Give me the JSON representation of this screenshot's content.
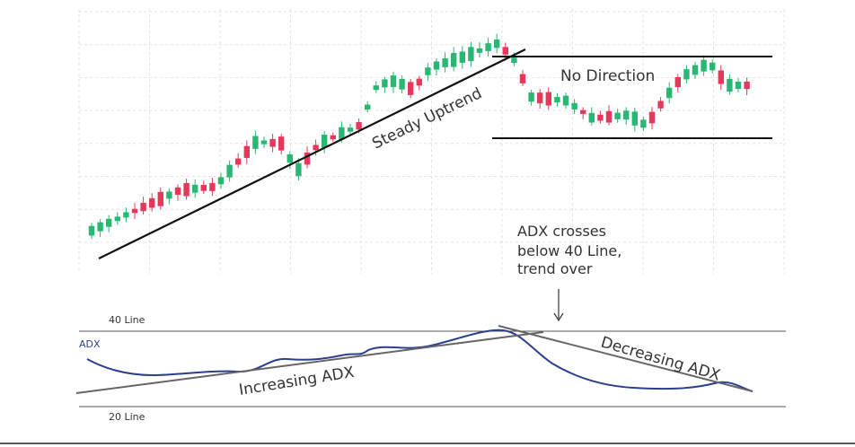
{
  "uptrend_label": "Steady Uptrend",
  "range_label": "No Direction",
  "note": [
    "ADX crosses",
    "below 40 Line,",
    "trend over"
  ],
  "upper_line_label": "40 Line",
  "lower_line_label": "20 Line",
  "adx_label": "ADX",
  "increasing_label": "Increasing ADX",
  "decreasing_label": "Decreasing ADX"
}
